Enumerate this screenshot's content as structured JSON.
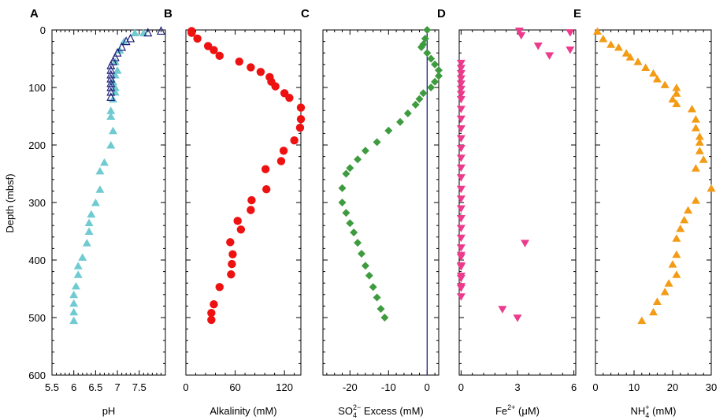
{
  "figure": {
    "ylabel": "Depth (mbsf)",
    "yticks": [
      0,
      100,
      200,
      300,
      400,
      500,
      600
    ]
  },
  "colors": {
    "cyan": "#6fcbd1",
    "red": "#ee1111",
    "green": "#3f9b3f",
    "pink": "#ec3b8c",
    "orange": "#f49b16",
    "navy": "#1f1f7a"
  },
  "chart_data": [
    {
      "type": "scatter",
      "panel": "A",
      "xlabel": "pH",
      "xlim": [
        5.5,
        8.1
      ],
      "ylim": [
        0,
        600
      ],
      "xticks": [
        "5.5",
        "6",
        "6.5",
        "7",
        "7.5"
      ],
      "xtick_values": [
        5.5,
        6.0,
        6.5,
        7.0,
        7.5
      ],
      "series": [
        {
          "marker": "triangle-up",
          "color": "cyan",
          "x": [
            7.6,
            7.4,
            7.15,
            7.05,
            6.95,
            7.0,
            6.95,
            6.9,
            6.95,
            6.95,
            6.9,
            6.85,
            6.85,
            6.9,
            6.85,
            6.7,
            6.6,
            6.6,
            6.5,
            6.4,
            6.35,
            6.35,
            6.3,
            6.2,
            6.1,
            6.1,
            6.05,
            6.0,
            6.0,
            6.0
          ],
          "y": [
            5,
            5,
            20,
            35,
            55,
            70,
            78,
            90,
            100,
            108,
            120,
            140,
            150,
            175,
            200,
            230,
            245,
            277,
            300,
            320,
            335,
            350,
            370,
            395,
            410,
            425,
            445,
            460,
            475,
            490
          ]
        },
        {
          "marker": "triangle-up",
          "color": "cyan",
          "note": "",
          "x": [
            6.0
          ],
          "y": [
            505
          ]
        },
        {
          "marker": "triangle-up-open",
          "color": "navy",
          "x": [
            8.0,
            7.7,
            7.3,
            7.2,
            7.1,
            7.0,
            6.95,
            6.9,
            6.85,
            6.85,
            6.85,
            6.85,
            6.85,
            6.85,
            6.85,
            6.85
          ],
          "y": [
            2,
            5,
            15,
            20,
            30,
            40,
            48,
            55,
            62,
            70,
            78,
            85,
            93,
            100,
            108,
            117
          ]
        }
      ]
    },
    {
      "type": "scatter",
      "panel": "B",
      "xlabel": "Alkalinity  (mM)",
      "xlim": [
        0,
        140
      ],
      "ylim": [
        0,
        600
      ],
      "xticks": [
        "0",
        "60",
        "120"
      ],
      "xtick_values": [
        0,
        60,
        120
      ],
      "series": [
        {
          "marker": "circle",
          "color": "red",
          "x": [
            7,
            7,
            14,
            27,
            34,
            41,
            65,
            79,
            91,
            102,
            104,
            109,
            120,
            126,
            140,
            140,
            139,
            132,
            119,
            116,
            97,
            98,
            80,
            79,
            63,
            67,
            54,
            57,
            56,
            55,
            41,
            34,
            31
          ],
          "y": [
            2,
            5,
            15,
            28,
            35,
            45,
            55,
            65,
            73,
            82,
            90,
            98,
            110,
            118,
            135,
            155,
            170,
            192,
            210,
            228,
            242,
            277,
            296,
            313,
            332,
            347,
            369,
            390,
            407,
            425,
            447,
            477,
            492
          ]
        },
        {
          "marker": "circle",
          "color": "red",
          "x": [
            31
          ],
          "y": [
            504
          ]
        }
      ]
    },
    {
      "type": "scatter",
      "panel": "C",
      "xlabel": "SO4 2− Excess (mM)",
      "xlim": [
        -27,
        3
      ],
      "ylim": [
        0,
        600
      ],
      "xticks": [
        "-20",
        "-10",
        "0"
      ],
      "xtick_values": [
        -20,
        -10,
        0
      ],
      "vline_x": 0,
      "series": [
        {
          "marker": "diamond",
          "color": "green",
          "x": [
            0,
            -0.5,
            -1,
            -1.5,
            0,
            1,
            2,
            3,
            3,
            2,
            1,
            -1,
            -2,
            -3,
            -5,
            -7,
            -10,
            -13,
            -16,
            -18,
            -20,
            -21,
            -22,
            -22,
            -21,
            -20,
            -19,
            -18,
            -17,
            -16,
            -15,
            -14,
            -13,
            -12,
            -11
          ],
          "y": [
            0,
            15,
            25,
            30,
            40,
            50,
            60,
            70,
            80,
            90,
            100,
            110,
            120,
            130,
            145,
            160,
            175,
            195,
            210,
            225,
            240,
            250,
            275,
            300,
            318,
            336,
            352,
            370,
            389,
            410,
            427,
            447,
            465,
            485,
            500
          ]
        }
      ]
    },
    {
      "type": "scatter",
      "panel": "D",
      "xlabel": "Fe2+ (μM)",
      "xlim": [
        -0.1,
        6.1
      ],
      "ylim": [
        0,
        600
      ],
      "xticks": [
        "0",
        "3",
        "6"
      ],
      "xtick_values": [
        0,
        3,
        6
      ],
      "series": [
        {
          "marker": "triangle-down",
          "color": "pink",
          "x": [
            3.1,
            3.2,
            5.8,
            4.1,
            4.7,
            5.8,
            0,
            0,
            0,
            0,
            0,
            0,
            0,
            0,
            0,
            0,
            0,
            0,
            0,
            0,
            0,
            0,
            0,
            0,
            0,
            0,
            0,
            0,
            0,
            0,
            0,
            0,
            0,
            3.4,
            0,
            0,
            0,
            0,
            0,
            2.2,
            3.0
          ],
          "y": [
            2,
            10,
            5,
            28,
            45,
            35,
            58,
            67,
            76,
            85,
            94,
            103,
            112,
            121,
            138,
            155,
            172,
            189,
            206,
            223,
            240,
            257,
            277,
            294,
            311,
            328,
            345,
            362,
            392,
            410,
            428,
            446,
            464,
            371,
            379,
            395,
            412,
            432,
            449,
            486,
            501
          ]
        }
      ]
    },
    {
      "type": "scatter",
      "panel": "E",
      "xlabel": "NH4+ (mM)",
      "xlim": [
        0,
        30
      ],
      "ylim": [
        0,
        600
      ],
      "xticks": [
        "0",
        "10",
        "20",
        "30"
      ],
      "xtick_values": [
        0,
        10,
        20,
        30
      ],
      "series": [
        {
          "marker": "triangle-up",
          "color": "orange",
          "x": [
            0.5,
            2,
            4,
            6,
            8,
            9,
            11,
            13,
            15,
            16,
            18,
            21,
            21,
            20,
            21,
            25,
            26,
            26,
            27,
            27,
            27,
            28,
            26,
            30,
            26,
            24,
            23,
            22,
            21,
            21,
            20,
            21,
            19,
            18,
            16,
            15,
            12
          ],
          "y": [
            2,
            15,
            25,
            30,
            40,
            47,
            55,
            65,
            75,
            85,
            95,
            100,
            110,
            120,
            128,
            137,
            155,
            170,
            185,
            195,
            210,
            225,
            240,
            275,
            296,
            313,
            330,
            345,
            362,
            390,
            407,
            425,
            440,
            455,
            472,
            490,
            505
          ]
        }
      ]
    }
  ],
  "labels": {
    "A": "A",
    "B": "B",
    "C": "C",
    "D": "D",
    "E": "E"
  },
  "xlabel_parts": {
    "C": {
      "main": "SO",
      "sub": "4",
      "sup": "2−",
      "rest": " Excess (mM)"
    },
    "D": {
      "main": "Fe",
      "sup": "2+",
      "rest": " (μM)"
    },
    "E": {
      "main": "NH",
      "sub": "4",
      "sup": "+",
      "rest": " (mM)"
    }
  }
}
